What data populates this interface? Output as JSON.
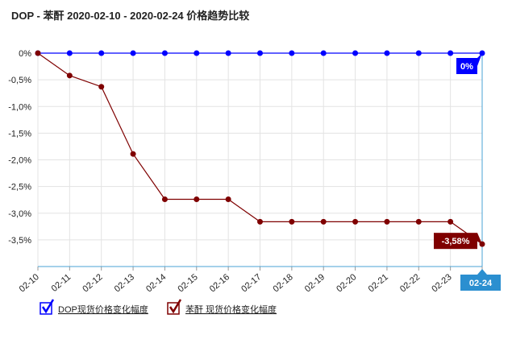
{
  "chart_data": {
    "type": "line",
    "title": "DOP - 苯酐 2020-02-10 - 2020-02-24 价格趋势比较",
    "categories": [
      "02-10",
      "02-11",
      "02-12",
      "02-13",
      "02-14",
      "02-15",
      "02-16",
      "02-17",
      "02-18",
      "02-19",
      "02-20",
      "02-21",
      "02-22",
      "02-23",
      "02-24"
    ],
    "series": [
      {
        "name": "DOP现货价格变化幅度",
        "color": "#0000ff",
        "values": [
          0,
          0,
          0,
          0,
          0,
          0,
          0,
          0,
          0,
          0,
          0,
          0,
          0,
          0,
          0
        ],
        "value_labels": [
          null,
          null,
          null,
          null,
          null,
          null,
          null,
          null,
          null,
          null,
          null,
          null,
          null,
          null,
          "0%"
        ]
      },
      {
        "name": "苯酐 现货价格变化幅度",
        "color": "#7f0000",
        "values": [
          0,
          -0.42,
          -0.63,
          -1.89,
          -2.74,
          -2.74,
          -2.74,
          -3.16,
          -3.16,
          -3.16,
          -3.16,
          -3.16,
          -3.16,
          -3.16,
          -3.58
        ],
        "value_labels": [
          null,
          null,
          null,
          null,
          null,
          null,
          null,
          null,
          null,
          null,
          null,
          null,
          null,
          null,
          "-3,58%"
        ]
      }
    ],
    "ylim": [
      -4,
      0
    ],
    "yticks": [
      {
        "value": 0,
        "label": "0%"
      },
      {
        "value": -0.5,
        "label": "-0,5%"
      },
      {
        "value": -1,
        "label": "-1,0%"
      },
      {
        "value": -1.5,
        "label": "-1,5%"
      },
      {
        "value": -2,
        "label": "-2,0%"
      },
      {
        "value": -2.5,
        "label": "-2,5%"
      },
      {
        "value": -3,
        "label": "-3,0%"
      },
      {
        "value": -3.5,
        "label": "-3,5%"
      }
    ],
    "grid": true
  }
}
